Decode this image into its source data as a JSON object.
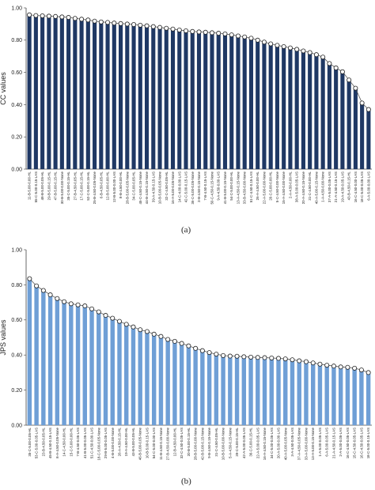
{
  "chart_data": [
    {
      "type": "bar",
      "ylabel": "CC values",
      "ylim": [
        0,
        1.0
      ],
      "yticks": [
        "0.00",
        "0.20",
        "0.40",
        "0.60",
        "0.80",
        "1.00"
      ],
      "bar_color": "#1f3864",
      "marker": "circle",
      "categories": [
        "11-B-5.00-0.00-HL",
        "55-C-5.00-0.15-LAS",
        "48-B-5.00-0.05-HL",
        "29-B-5.00-0.15-HL",
        "47-B-5.00-0.15-HL",
        "30-B-5.00-0.00-None",
        "35-C-5.00-0.15-HL",
        "27-B-4.50-0.05-HL",
        "17-C-5.00-0.15-HL",
        "52-C-5.00-0.15-HL",
        "25-B-4.50-0.05-None",
        "6-B-4.50-0.05-HL",
        "12-B-5.00-0.00-HL",
        "12-B-5.00-0.00-LAS",
        "8-B-4.50-0.00-HL",
        "28-B-5.00-0.05-None",
        "34-C-5.00-0.05-HL",
        "45-C-4.50-0.15-None",
        "44-B-4.50-0.15-None",
        "39-A-4.50-0.15-LAS",
        "10-B-5.00-0.05-None",
        "32-C-4.50-0.05-HL",
        "16-A-5.00-0.05-None",
        "14-C-4.00-0.00-LAS",
        "42-C-5.00-0.15-LAS",
        "36-C-5.00-0.05-None",
        "3-B-4.50-0.15-None",
        "7-B-4.50-0.15-LAS",
        "50-C-4.50-0.15-None",
        "9-A-4.50-0.00-LAS",
        "41-B-5.00-0.15-None",
        "54-C-5.00-0.00-HL",
        "13-A-4.50-0.15-None",
        "33-B-4.50-0.00-None",
        "51-C-4.50-0.15-LAS",
        "26-A-4.50-0.00-HL",
        "22-A-5.00-0.00-None",
        "20-C-5.00-0.00-HL",
        "5-C-4.50-0.00-None",
        "15-A-4.50-0.00-None",
        "2-A-4.50-0.00-HL",
        "38-A-5.00-0.05-LAS",
        "20-A-4.50-0.15-None",
        "31-C-4.50-0.00-HL",
        "40-A-5.00-0.15-None",
        "1-A-4.50-0.00-None",
        "37-A-5.00-0.05-LAS",
        "21-A-4.50-0.15-LAS",
        "19-A-4.50-0.05-LAS",
        "43-B-4.50-0.15-HL",
        "16-C-4.50-0.00-LAS",
        "18-C-5.00-0.05-LAS",
        "6-A-5.00-0.00-LAS"
      ],
      "values": [
        0.957,
        0.953,
        0.951,
        0.949,
        0.947,
        0.944,
        0.941,
        0.935,
        0.93,
        0.925,
        0.918,
        0.913,
        0.91,
        0.906,
        0.903,
        0.9,
        0.897,
        0.893,
        0.889,
        0.884,
        0.879,
        0.874,
        0.869,
        0.863,
        0.858,
        0.854,
        0.851,
        0.849,
        0.846,
        0.843,
        0.839,
        0.833,
        0.826,
        0.82,
        0.812,
        0.8,
        0.788,
        0.777,
        0.768,
        0.76,
        0.752,
        0.743,
        0.733,
        0.723,
        0.71,
        0.695,
        0.655,
        0.628,
        0.604,
        0.553,
        0.502,
        0.41,
        0.37
      ]
    },
    {
      "type": "bar",
      "ylabel": "JPS values",
      "ylim": [
        0,
        1.0
      ],
      "yticks": [
        "0.00",
        "0.20",
        "0.40",
        "0.60",
        "0.80",
        "1.00"
      ],
      "bar_color": "#6f9fd6",
      "marker": "circle",
      "categories": [
        "35-C-5.00-0.05-HL",
        "53-C-5.00-0.05-LAS",
        "23-B-4.50-0.05-HL",
        "45-B-4.50-0.15-LAS",
        "8-A-4.50-0.05-None",
        "14-C-4.50-0.00-HL",
        "15-C-5.00-0.00-HL",
        "7-B-4.50-0.05-LAS",
        "41-B-5.00-0.05-LAS",
        "51-C-4.50-0.00-LAS",
        "18-C-5.00-0.05-None",
        "29-B-5.00-0.05-LAS",
        "4-B-5.00-0.00-None",
        "26-A-4.50-0.15-HL",
        "19-A-4.50-0.00-HL",
        "43-B-5.00-0.05-HL",
        "46-B-5.00-0.05-None",
        "10-B-5.00-0.15-LAS",
        "54-C-5.00-0.00-LAS",
        "11-B-4.50-0.15-None",
        "27-B-4.50-0.00-None",
        "12-B-4.50-0.00-HL",
        "32-C-4.50-0.05-LAS",
        "20-B-5.00-0.15-HL",
        "28-B-5.00-0.00-None",
        "42-B-5.00-0.15-None",
        "9-B-4.50-0.15-None",
        "31-C-4.50-0.05-HL",
        "10-B-5.00-0.00-None",
        "5-A-4.50-0.15-None",
        "39-C-5.00-0.15-HL",
        "42-A-5.00-0.05-LAS",
        "36-C-5.00-0.15-HL",
        "22-A-5.00-0.05-LAS",
        "16-A-4.50-0.15-None",
        "34-C-5.00-0.05-LAS",
        "20-A-5.00-0.00-LAS",
        "40-A-5.00-0.05-None",
        "3-A-4.50-0.05-LAS",
        "37-A-4.50-0.05-None",
        "33-A-5.00-0.00-None",
        "13-A-5.00-0.15-None",
        "1-A-5.00-0.05-LAS",
        "6-A-5.00-0.05-LAS",
        "21-A-4.50-0.15-LAS",
        "2-A-5.00-0.05-LAS",
        "16-C-4.50-0.05-LAS",
        "15-C-4.50-0.05-LAS",
        "16-C-4.50-0.05-LAS",
        "18-C-5.00-0.15-LAS"
      ],
      "values": [
        0.835,
        0.794,
        0.768,
        0.743,
        0.722,
        0.704,
        0.692,
        0.686,
        0.68,
        0.663,
        0.646,
        0.626,
        0.61,
        0.592,
        0.575,
        0.56,
        0.544,
        0.534,
        0.519,
        0.506,
        0.489,
        0.478,
        0.466,
        0.452,
        0.438,
        0.425,
        0.414,
        0.405,
        0.397,
        0.394,
        0.393,
        0.39,
        0.388,
        0.386,
        0.385,
        0.383,
        0.381,
        0.378,
        0.373,
        0.367,
        0.362,
        0.355,
        0.348,
        0.342,
        0.337,
        0.332,
        0.33,
        0.325,
        0.315,
        0.3
      ]
    }
  ],
  "captions": [
    "(a)",
    "(b)"
  ]
}
